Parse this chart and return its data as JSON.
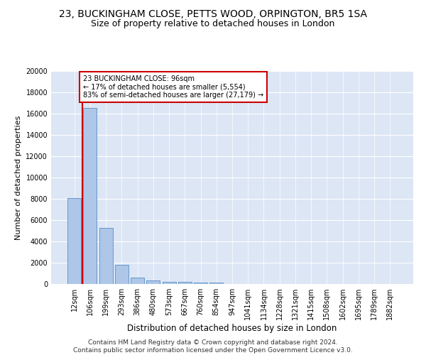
{
  "title1": "23, BUCKINGHAM CLOSE, PETTS WOOD, ORPINGTON, BR5 1SA",
  "title2": "Size of property relative to detached houses in London",
  "xlabel": "Distribution of detached houses by size in London",
  "ylabel": "Number of detached properties",
  "footer1": "Contains HM Land Registry data © Crown copyright and database right 2024.",
  "footer2": "Contains public sector information licensed under the Open Government Licence v3.0.",
  "categories": [
    "12sqm",
    "106sqm",
    "199sqm",
    "293sqm",
    "386sqm",
    "480sqm",
    "573sqm",
    "667sqm",
    "760sqm",
    "854sqm",
    "947sqm",
    "1041sqm",
    "1134sqm",
    "1228sqm",
    "1321sqm",
    "1415sqm",
    "1508sqm",
    "1602sqm",
    "1695sqm",
    "1789sqm",
    "1882sqm"
  ],
  "values": [
    8100,
    16500,
    5300,
    1800,
    620,
    340,
    230,
    200,
    160,
    130,
    0,
    0,
    0,
    0,
    0,
    0,
    0,
    0,
    0,
    0,
    0
  ],
  "bar_color": "#aec6e8",
  "bar_edgecolor": "#6699cc",
  "ylim": [
    0,
    20000
  ],
  "yticks": [
    0,
    2000,
    4000,
    6000,
    8000,
    10000,
    12000,
    14000,
    16000,
    18000,
    20000
  ],
  "property_line_x": 0.5,
  "annotation_text": "23 BUCKINGHAM CLOSE: 96sqm\n← 17% of detached houses are smaller (5,554)\n83% of semi-detached houses are larger (27,179) →",
  "annotation_box_color": "#ffffff",
  "annotation_box_edgecolor": "#cc0000",
  "property_line_color": "#cc0000",
  "plot_bg_color": "#dce6f5",
  "grid_color": "#ffffff",
  "title1_fontsize": 10,
  "title2_fontsize": 9,
  "xlabel_fontsize": 8.5,
  "ylabel_fontsize": 8,
  "tick_fontsize": 7,
  "footer_fontsize": 6.5
}
